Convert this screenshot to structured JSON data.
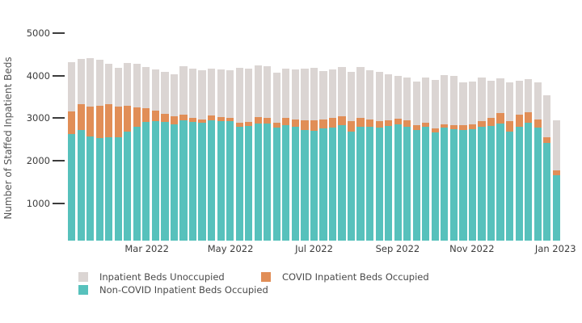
{
  "chart_data": {
    "type": "bar",
    "stacked": true,
    "title": "",
    "xlabel": "",
    "ylabel": "Number of Staffed Inpatient Beds",
    "ylim": [
      0,
      5000
    ],
    "y_ticks": [
      1000,
      2000,
      3000,
      4000,
      5000
    ],
    "grid": false,
    "n_bars": 53,
    "bar_unit": "week",
    "x_tick_labels": [
      "Mar 2022",
      "May 2022",
      "Jul 2022",
      "Sep 2022",
      "Nov 2022",
      "Jan 2023"
    ],
    "x_tick_bar_index": [
      9,
      18,
      27,
      36,
      44,
      53
    ],
    "legend_position": "bottom",
    "series": [
      {
        "name": "Non-COVID Inpatient Beds Occupied",
        "color": "#57C1BC",
        "values": [
          2630,
          2725,
          2580,
          2535,
          2550,
          2555,
          2695,
          2810,
          2905,
          2930,
          2905,
          2850,
          2960,
          2915,
          2895,
          2945,
          2930,
          2925,
          2805,
          2820,
          2885,
          2875,
          2775,
          2835,
          2810,
          2725,
          2705,
          2755,
          2790,
          2835,
          2695,
          2795,
          2795,
          2780,
          2820,
          2850,
          2800,
          2720,
          2800,
          2670,
          2775,
          2750,
          2720,
          2745,
          2800,
          2820,
          2885,
          2680,
          2810,
          2895,
          2790,
          2430,
          1670
        ]
      },
      {
        "name": "COVID Inpatient Beds Occupied",
        "color": "#E18E57",
        "values": [
          525,
          600,
          695,
          750,
          780,
          710,
          600,
          445,
          330,
          255,
          200,
          205,
          130,
          95,
          85,
          115,
          90,
          80,
          85,
          95,
          140,
          135,
          120,
          165,
          170,
          235,
          240,
          220,
          210,
          210,
          240,
          215,
          175,
          150,
          140,
          140,
          150,
          120,
          90,
          100,
          75,
          80,
          110,
          105,
          130,
          180,
          235,
          255,
          275,
          240,
          190,
          120,
          105
        ]
      },
      {
        "name": "Inpatient Beds Unoccupied",
        "color": "#DBD5D3",
        "values": [
          1155,
          1060,
          1130,
          1090,
          950,
          920,
          1000,
          1025,
          970,
          950,
          980,
          970,
          1125,
          1160,
          1140,
          1110,
          1130,
          1115,
          1290,
          1240,
          1210,
          1205,
          1180,
          1155,
          1160,
          1210,
          1235,
          1125,
          1150,
          1160,
          1155,
          1190,
          1155,
          1155,
          1080,
          1000,
          1010,
          1020,
          1060,
          1130,
          1160,
          1160,
          1020,
          1010,
          1020,
          885,
          810,
          900,
          800,
          775,
          865,
          980,
          1175
        ]
      }
    ],
    "colors": {
      "non_covid_occupied": "#57C1BC",
      "covid_occupied": "#E18E57",
      "unoccupied": "#DBD5D3",
      "axis_text": "#3c3c3c",
      "background": "#ffffff"
    }
  }
}
